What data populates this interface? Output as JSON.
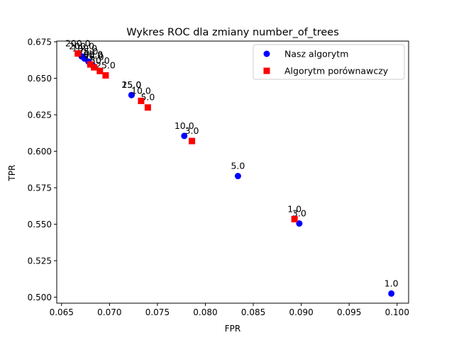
{
  "chart_data": {
    "type": "scatter",
    "title": "Wykres ROC dla zmiany number_of_trees",
    "xlabel": "FPR",
    "ylabel": "TPR",
    "xlim": [
      0.0645,
      0.1012
    ],
    "ylim": [
      0.4959,
      0.6755
    ],
    "x_ticks": [
      "0.065",
      "0.070",
      "0.075",
      "0.080",
      "0.085",
      "0.090",
      "0.095",
      "0.100"
    ],
    "y_ticks": [
      "0.500",
      "0.525",
      "0.550",
      "0.575",
      "0.600",
      "0.625",
      "0.650",
      "0.675"
    ],
    "grid": false,
    "legend_position": "top-right",
    "series": [
      {
        "name": "Nasz algorytm",
        "color": "#0000ff",
        "marker": "circle",
        "points": [
          {
            "x": 0.0994,
            "y": 0.5025,
            "label": "1.0"
          },
          {
            "x": 0.0898,
            "y": 0.5505,
            "label": "3.0"
          },
          {
            "x": 0.0834,
            "y": 0.583,
            "label": "5.0"
          },
          {
            "x": 0.0778,
            "y": 0.6105,
            "label": "10.0"
          },
          {
            "x": 0.0723,
            "y": 0.6385,
            "label": "15.0"
          },
          {
            "x": 0.0723,
            "y": 0.6385,
            "label": "25.0"
          },
          {
            "x": 0.0683,
            "y": 0.6585,
            "label": "50.0"
          },
          {
            "x": 0.0678,
            "y": 0.6615,
            "label": "75.0"
          },
          {
            "x": 0.0674,
            "y": 0.6635,
            "label": "100.0"
          },
          {
            "x": 0.0671,
            "y": 0.665,
            "label": "200.0"
          }
        ]
      },
      {
        "name": "Algorytm porównawczy",
        "color": "#ff0000",
        "marker": "square",
        "points": [
          {
            "x": 0.0893,
            "y": 0.5535,
            "label": "1.0"
          },
          {
            "x": 0.0786,
            "y": 0.607,
            "label": "3.0"
          },
          {
            "x": 0.074,
            "y": 0.63,
            "label": "5.0"
          },
          {
            "x": 0.0733,
            "y": 0.6345,
            "label": "10.0"
          },
          {
            "x": 0.0696,
            "y": 0.652,
            "label": "25.0"
          },
          {
            "x": 0.069,
            "y": 0.655,
            "label": "50.0"
          },
          {
            "x": 0.0684,
            "y": 0.6575,
            "label": "75.0"
          },
          {
            "x": 0.068,
            "y": 0.6595,
            "label": "100.0"
          },
          {
            "x": 0.0667,
            "y": 0.667,
            "label": "200.0"
          }
        ]
      }
    ]
  }
}
